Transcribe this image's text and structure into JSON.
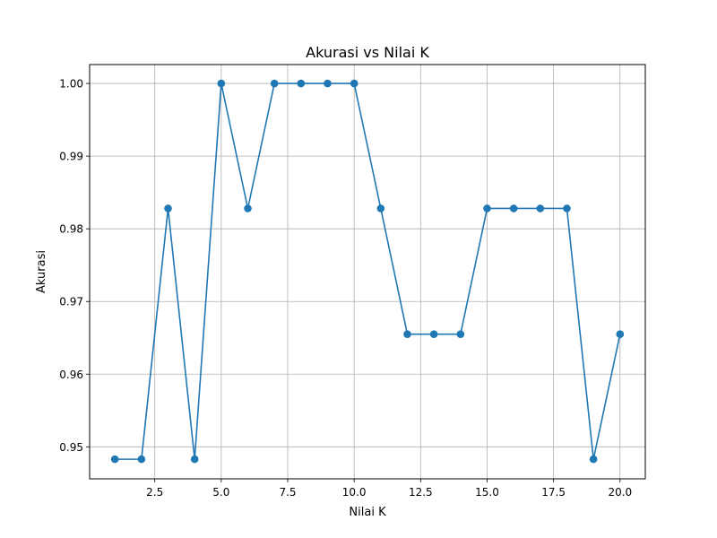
{
  "chart_data": {
    "type": "line",
    "title": "Akurasi vs Nilai K",
    "xlabel": "Nilai K",
    "ylabel": "Akurasi",
    "xlim": [
      0.05,
      20.95
    ],
    "ylim": [
      0.9456,
      1.0026
    ],
    "xticks": [
      2.5,
      5.0,
      7.5,
      10.0,
      12.5,
      15.0,
      17.5,
      20.0
    ],
    "xtick_labels": [
      "2.5",
      "5.0",
      "7.5",
      "10.0",
      "12.5",
      "15.0",
      "17.5",
      "20.0"
    ],
    "yticks": [
      0.95,
      0.96,
      0.97,
      0.98,
      0.99,
      1.0
    ],
    "ytick_labels": [
      "0.95",
      "0.96",
      "0.97",
      "0.98",
      "0.99",
      "1.00"
    ],
    "grid": true,
    "series": [
      {
        "color": "#1f77b4",
        "marker": "circle",
        "x": [
          1,
          2,
          3,
          4,
          5,
          6,
          7,
          8,
          9,
          10,
          11,
          12,
          13,
          14,
          15,
          16,
          17,
          18,
          19,
          20
        ],
        "y": [
          0.9483,
          0.9483,
          0.9828,
          0.9483,
          1.0,
          0.9828,
          1.0,
          1.0,
          1.0,
          1.0,
          0.9828,
          0.9655,
          0.9655,
          0.9655,
          0.9828,
          0.9828,
          0.9828,
          0.9828,
          0.9483,
          0.9655
        ]
      }
    ]
  }
}
